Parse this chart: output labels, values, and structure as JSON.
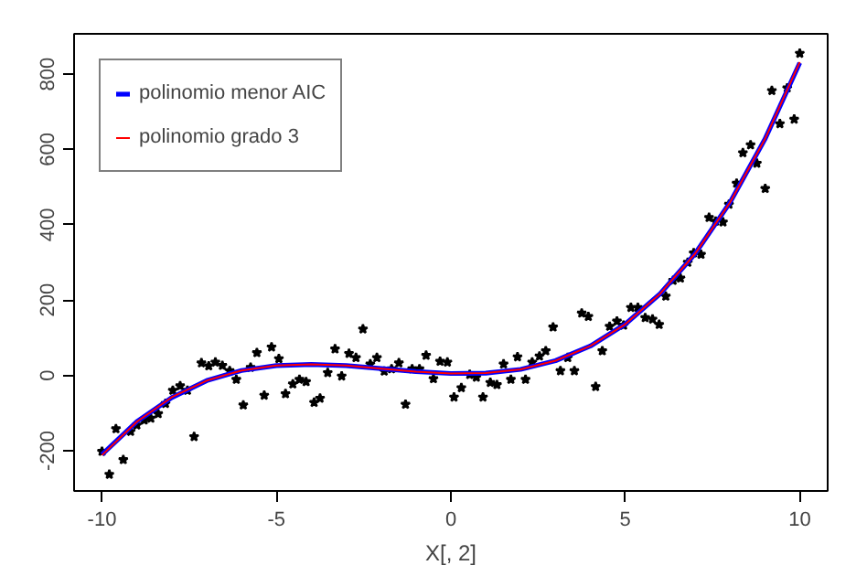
{
  "chart_data": {
    "type": "scatter",
    "xlabel": "X[, 2]",
    "xlim": [
      -10.8,
      10.8
    ],
    "ylim": [
      -307,
      907
    ],
    "xticks": [
      -10,
      -5,
      0,
      5,
      10
    ],
    "yticks": [
      -200,
      0,
      200,
      400,
      600,
      800
    ],
    "grid": false,
    "legend": "top left",
    "series": [
      {
        "color": "#000000",
        "marker": "star",
        "x": [
          -10.0,
          -9.79,
          -9.6,
          -9.39,
          -9.18,
          -9.0,
          -8.79,
          -8.6,
          -8.39,
          -8.18,
          -7.97,
          -7.76,
          -7.55,
          -7.36,
          -7.15,
          -6.94,
          -6.75,
          -6.55,
          -6.34,
          -6.15,
          -5.95,
          -5.74,
          -5.56,
          -5.35,
          -5.14,
          -4.93,
          -4.74,
          -4.53,
          -4.34,
          -4.15,
          -3.92,
          -3.75,
          -3.53,
          -3.32,
          -3.13,
          -2.92,
          -2.72,
          -2.52,
          -2.31,
          -2.12,
          -1.91,
          -1.7,
          -1.49,
          -1.3,
          -1.11,
          -0.9,
          -0.71,
          -0.5,
          -0.31,
          -0.1,
          0.09,
          0.3,
          0.54,
          0.73,
          0.92,
          1.13,
          1.32,
          1.51,
          1.72,
          1.91,
          2.14,
          2.33,
          2.54,
          2.72,
          2.93,
          3.14,
          3.35,
          3.54,
          3.75,
          3.94,
          4.15,
          4.34,
          4.55,
          4.76,
          4.95,
          5.16,
          5.36,
          5.57,
          5.78,
          5.97,
          6.16,
          6.37,
          6.58,
          6.79,
          6.96,
          7.17,
          7.4,
          7.59,
          7.8,
          7.97,
          8.19,
          8.37,
          8.59,
          8.77,
          9.01,
          9.2,
          9.43,
          9.64,
          9.84,
          10.0
        ],
        "values": [
          -202,
          -263,
          -142,
          -224,
          -149,
          -132,
          -119,
          -114,
          -102,
          -75,
          -40,
          -28,
          -40,
          -163,
          33,
          25,
          35,
          26,
          12,
          -11,
          -79,
          21,
          60,
          -53,
          75,
          44,
          -49,
          -23,
          -11,
          -17,
          -72,
          -61,
          7,
          70,
          -2,
          58,
          47,
          123,
          30,
          47,
          11,
          17,
          33,
          -77,
          17,
          17,
          53,
          -9,
          37,
          35,
          -58,
          -33,
          2,
          -5,
          -58,
          -19,
          -25,
          30,
          -11,
          49,
          -11,
          35,
          51,
          65,
          128,
          12,
          47,
          12,
          165,
          156,
          -30,
          65,
          130,
          144,
          133,
          180,
          180,
          153,
          149,
          135,
          210,
          252,
          258,
          300,
          325,
          321,
          419,
          409,
          407,
          454,
          510,
          591,
          612,
          563,
          496,
          756,
          668,
          763,
          680,
          855
        ]
      },
      {
        "type": "line",
        "name": "polinomio menor AIC",
        "color": "#0000ff",
        "marker": "none",
        "line_style": "solid",
        "x": [
          -10,
          -9,
          -8,
          -7,
          -6,
          -5,
          -4,
          -3,
          -2,
          -1,
          0,
          1,
          2,
          3,
          4,
          5,
          6,
          7,
          8,
          9,
          10
        ],
        "values": [
          -210,
          -123,
          -59,
          -14,
          13,
          26,
          29,
          26,
          18,
          10,
          5,
          6,
          16,
          39,
          78,
          136,
          217,
          323,
          459,
          627,
          830
        ]
      },
      {
        "type": "line",
        "name": "polinomio grado 3",
        "color": "#ff0000",
        "marker": "none",
        "line_style": "solid",
        "x": [
          -10,
          -9,
          -8,
          -7,
          -6,
          -5,
          -4,
          -3,
          -2,
          -1,
          0,
          1,
          2,
          3,
          4,
          5,
          6,
          7,
          8,
          9,
          10
        ],
        "values": [
          -212,
          -123,
          -58,
          -14,
          13,
          26,
          29,
          26,
          18,
          10,
          5,
          6,
          16,
          39,
          78,
          136,
          217,
          323,
          459,
          627,
          832
        ]
      }
    ]
  }
}
